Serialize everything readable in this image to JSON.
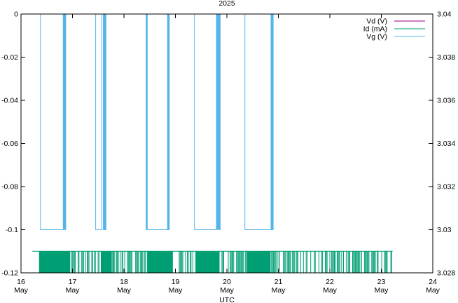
{
  "chart_data": {
    "type": "line",
    "title": "2025",
    "xlabel": "UTC",
    "ylabel": "",
    "y2label": "",
    "grid": false,
    "legend_placement": "top-right",
    "x_unit": "day of May 2025",
    "xlim": [
      16,
      24
    ],
    "ylim": [
      -0.12,
      0
    ],
    "y2lim": [
      3.028,
      3.04
    ],
    "x_ticks": [
      {
        "value": 16,
        "day": "16",
        "month": "May"
      },
      {
        "value": 17,
        "day": "17",
        "month": "May"
      },
      {
        "value": 18,
        "day": "18",
        "month": "May"
      },
      {
        "value": 19,
        "day": "19",
        "month": "May"
      },
      {
        "value": 20,
        "day": "20",
        "month": "May"
      },
      {
        "value": 21,
        "day": "21",
        "month": "May"
      },
      {
        "value": 22,
        "day": "22",
        "month": "May"
      },
      {
        "value": 23,
        "day": "23",
        "month": "May"
      },
      {
        "value": 24,
        "day": "24",
        "month": "May"
      }
    ],
    "y_ticks": [
      "0",
      "-0.02",
      "-0.04",
      "-0.06",
      "-0.08",
      "-0.1",
      "-0.12"
    ],
    "y_tick_values": [
      0,
      -0.02,
      -0.04,
      -0.06,
      -0.08,
      -0.1,
      -0.12
    ],
    "y2_ticks": [
      "3.04",
      "3.038",
      "3.036",
      "3.034",
      "3.032",
      "3.03",
      "3.028"
    ],
    "y2_tick_values": [
      3.04,
      3.038,
      3.036,
      3.034,
      3.032,
      3.03,
      3.028
    ],
    "series": [
      {
        "name": "Vd (V)",
        "color": "#94007f",
        "axis": "y",
        "values": []
      },
      {
        "name": "Id (mA)",
        "color": "#009e73",
        "axis": "y",
        "x_range": [
          16.22,
          23.22
        ],
        "baseline": -0.11,
        "floor": -0.12,
        "dense_spans": [
          [
            16.35,
            16.95
          ],
          [
            17.55,
            17.75
          ],
          [
            18.45,
            18.95
          ],
          [
            19.4,
            19.85
          ],
          [
            20.4,
            20.85
          ]
        ],
        "sparse_spans": [
          [
            16.95,
            17.55
          ],
          [
            17.75,
            18.45
          ],
          [
            18.95,
            19.4
          ],
          [
            19.85,
            20.4
          ],
          [
            20.85,
            23.22
          ]
        ]
      },
      {
        "name": "Vg (V)",
        "color": "#56b4e9",
        "axis": "y",
        "points": [
          [
            16.0,
            0
          ],
          [
            16.38,
            0
          ],
          [
            16.38,
            -0.1
          ],
          [
            16.82,
            -0.1
          ],
          [
            16.82,
            0
          ],
          [
            16.86,
            0
          ],
          [
            16.86,
            -0.1
          ],
          [
            16.87,
            -0.1
          ],
          [
            16.87,
            0
          ],
          [
            17.45,
            0
          ],
          [
            17.45,
            -0.1
          ],
          [
            17.57,
            -0.1
          ],
          [
            17.57,
            0
          ],
          [
            17.6,
            0
          ],
          [
            17.6,
            -0.1
          ],
          [
            17.65,
            -0.1
          ],
          [
            17.65,
            0
          ],
          [
            18.43,
            0
          ],
          [
            18.43,
            -0.1
          ],
          [
            18.88,
            -0.1
          ],
          [
            18.88,
            0
          ],
          [
            19.37,
            0
          ],
          [
            19.37,
            -0.1
          ],
          [
            19.8,
            -0.1
          ],
          [
            19.8,
            0
          ],
          [
            19.85,
            0
          ],
          [
            19.85,
            -0.1
          ],
          [
            19.87,
            -0.1
          ],
          [
            19.87,
            0
          ],
          [
            20.35,
            0
          ],
          [
            20.35,
            -0.1
          ],
          [
            20.87,
            -0.1
          ],
          [
            20.87,
            0
          ],
          [
            20.89,
            0
          ],
          [
            20.89,
            -0.1
          ],
          [
            20.9,
            -0.1
          ],
          [
            20.9,
            0
          ]
        ],
        "bursts": [
          [
            16.82,
            16.87
          ],
          [
            17.6,
            17.65
          ],
          [
            18.43,
            18.46
          ],
          [
            18.84,
            18.88
          ],
          [
            19.79,
            19.87
          ],
          [
            20.85,
            20.9
          ]
        ]
      }
    ]
  }
}
